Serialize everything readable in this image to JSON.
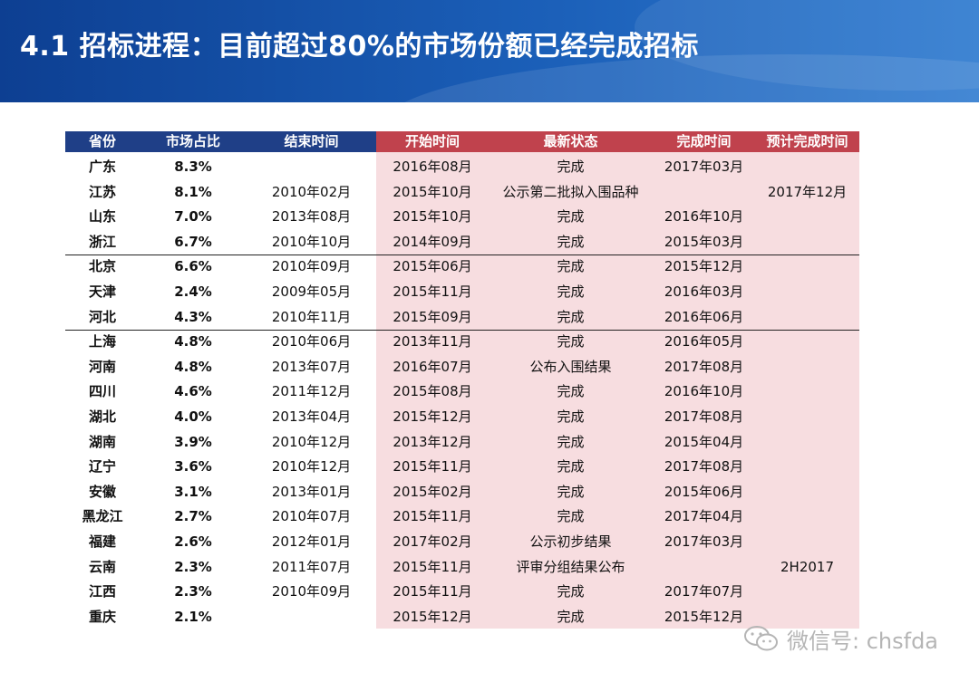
{
  "title": "4.1 招标进程：目前超过80%的市场份额已经完成招标",
  "table": {
    "headers": [
      "省份",
      "市场占比",
      "结束时间",
      "开始时间",
      "最新状态",
      "完成时间",
      "预计完成时间"
    ],
    "rows": [
      [
        "广东",
        "8.3%",
        "",
        "2016年08月",
        "完成",
        "2017年03月",
        ""
      ],
      [
        "江苏",
        "8.1%",
        "2010年02月",
        "2015年10月",
        "公示第二批拟入围品种",
        "",
        "2017年12月"
      ],
      [
        "山东",
        "7.0%",
        "2013年08月",
        "2015年10月",
        "完成",
        "2016年10月",
        ""
      ],
      [
        "浙江",
        "6.7%",
        "2010年10月",
        "2014年09月",
        "完成",
        "2015年03月",
        ""
      ],
      [
        "北京",
        "6.6%",
        "2010年09月",
        "2015年06月",
        "完成",
        "2015年12月",
        ""
      ],
      [
        "天津",
        "2.4%",
        "2009年05月",
        "2015年11月",
        "完成",
        "2016年03月",
        ""
      ],
      [
        "河北",
        "4.3%",
        "2010年11月",
        "2015年09月",
        "完成",
        "2016年06月",
        ""
      ],
      [
        "上海",
        "4.8%",
        "2010年06月",
        "2013年11月",
        "完成",
        "2016年05月",
        ""
      ],
      [
        "河南",
        "4.8%",
        "2013年07月",
        "2016年07月",
        "公布入围结果",
        "2017年08月",
        ""
      ],
      [
        "四川",
        "4.6%",
        "2011年12月",
        "2015年08月",
        "完成",
        "2016年10月",
        ""
      ],
      [
        "湖北",
        "4.0%",
        "2013年04月",
        "2015年12月",
        "完成",
        "2017年08月",
        ""
      ],
      [
        "湖南",
        "3.9%",
        "2010年12月",
        "2013年12月",
        "完成",
        "2015年04月",
        ""
      ],
      [
        "辽宁",
        "3.6%",
        "2010年12月",
        "2015年11月",
        "完成",
        "2017年08月",
        ""
      ],
      [
        "安徽",
        "3.1%",
        "2013年01月",
        "2015年02月",
        "完成",
        "2015年06月",
        ""
      ],
      [
        "黑龙江",
        "2.7%",
        "2010年07月",
        "2015年11月",
        "完成",
        "2017年04月",
        ""
      ],
      [
        "福建",
        "2.6%",
        "2012年01月",
        "2017年02月",
        "公示初步结果",
        "2017年03月",
        ""
      ],
      [
        "云南",
        "2.3%",
        "2011年07月",
        "2015年11月",
        "评审分组结果公布",
        "",
        "2H2017"
      ],
      [
        "江西",
        "2.3%",
        "2010年09月",
        "2015年11月",
        "完成",
        "2017年07月",
        ""
      ],
      [
        "重庆",
        "2.1%",
        "",
        "2015年12月",
        "完成",
        "2015年12月",
        ""
      ]
    ]
  },
  "watermark": {
    "text": "微信号: chsfda",
    "icon": "wechat-icon"
  }
}
